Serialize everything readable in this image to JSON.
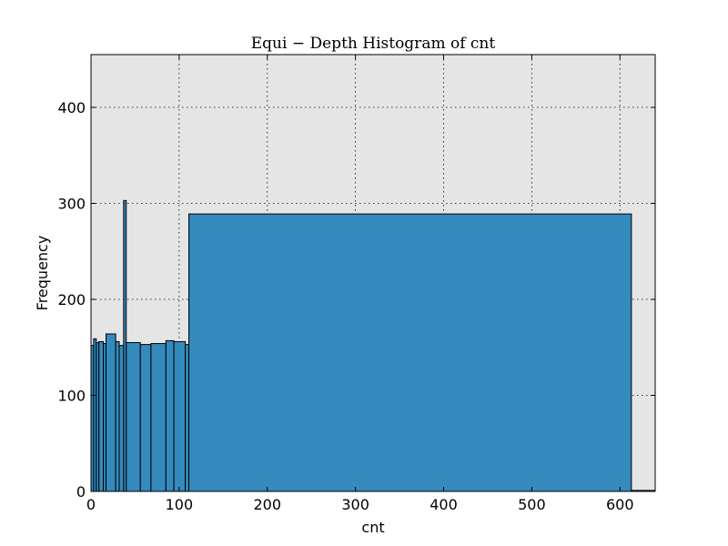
{
  "chart_data": {
    "type": "bar",
    "title": "Equi − Depth Histogram of cnt",
    "xlabel": "cnt",
    "ylabel": "Frequency",
    "xlim": [
      0,
      640
    ],
    "ylim": [
      0,
      455
    ],
    "xticks": [
      0,
      100,
      200,
      300,
      400,
      500,
      600
    ],
    "yticks": [
      0,
      100,
      200,
      300,
      400
    ],
    "grid": true,
    "background": "#e5e5e5",
    "bar_color": "#348abd",
    "bins": [
      {
        "x0": 0,
        "x1": 3,
        "y": 152
      },
      {
        "x0": 3,
        "x1": 6,
        "y": 159
      },
      {
        "x0": 6,
        "x1": 9,
        "y": 155
      },
      {
        "x0": 9,
        "x1": 14,
        "y": 156
      },
      {
        "x0": 14,
        "x1": 17,
        "y": 154
      },
      {
        "x0": 17,
        "x1": 28,
        "y": 164
      },
      {
        "x0": 28,
        "x1": 32,
        "y": 156
      },
      {
        "x0": 32,
        "x1": 37,
        "y": 152
      },
      {
        "x0": 37,
        "x1": 40,
        "y": 303
      },
      {
        "x0": 40,
        "x1": 56,
        "y": 155
      },
      {
        "x0": 56,
        "x1": 68,
        "y": 153
      },
      {
        "x0": 68,
        "x1": 85,
        "y": 154
      },
      {
        "x0": 85,
        "x1": 94,
        "y": 157
      },
      {
        "x0": 94,
        "x1": 107,
        "y": 156
      },
      {
        "x0": 107,
        "x1": 111,
        "y": 153
      },
      {
        "x0": 111,
        "x1": 613,
        "y": 289
      },
      {
        "x0": 613,
        "x1": 640,
        "y": 1
      }
    ]
  }
}
